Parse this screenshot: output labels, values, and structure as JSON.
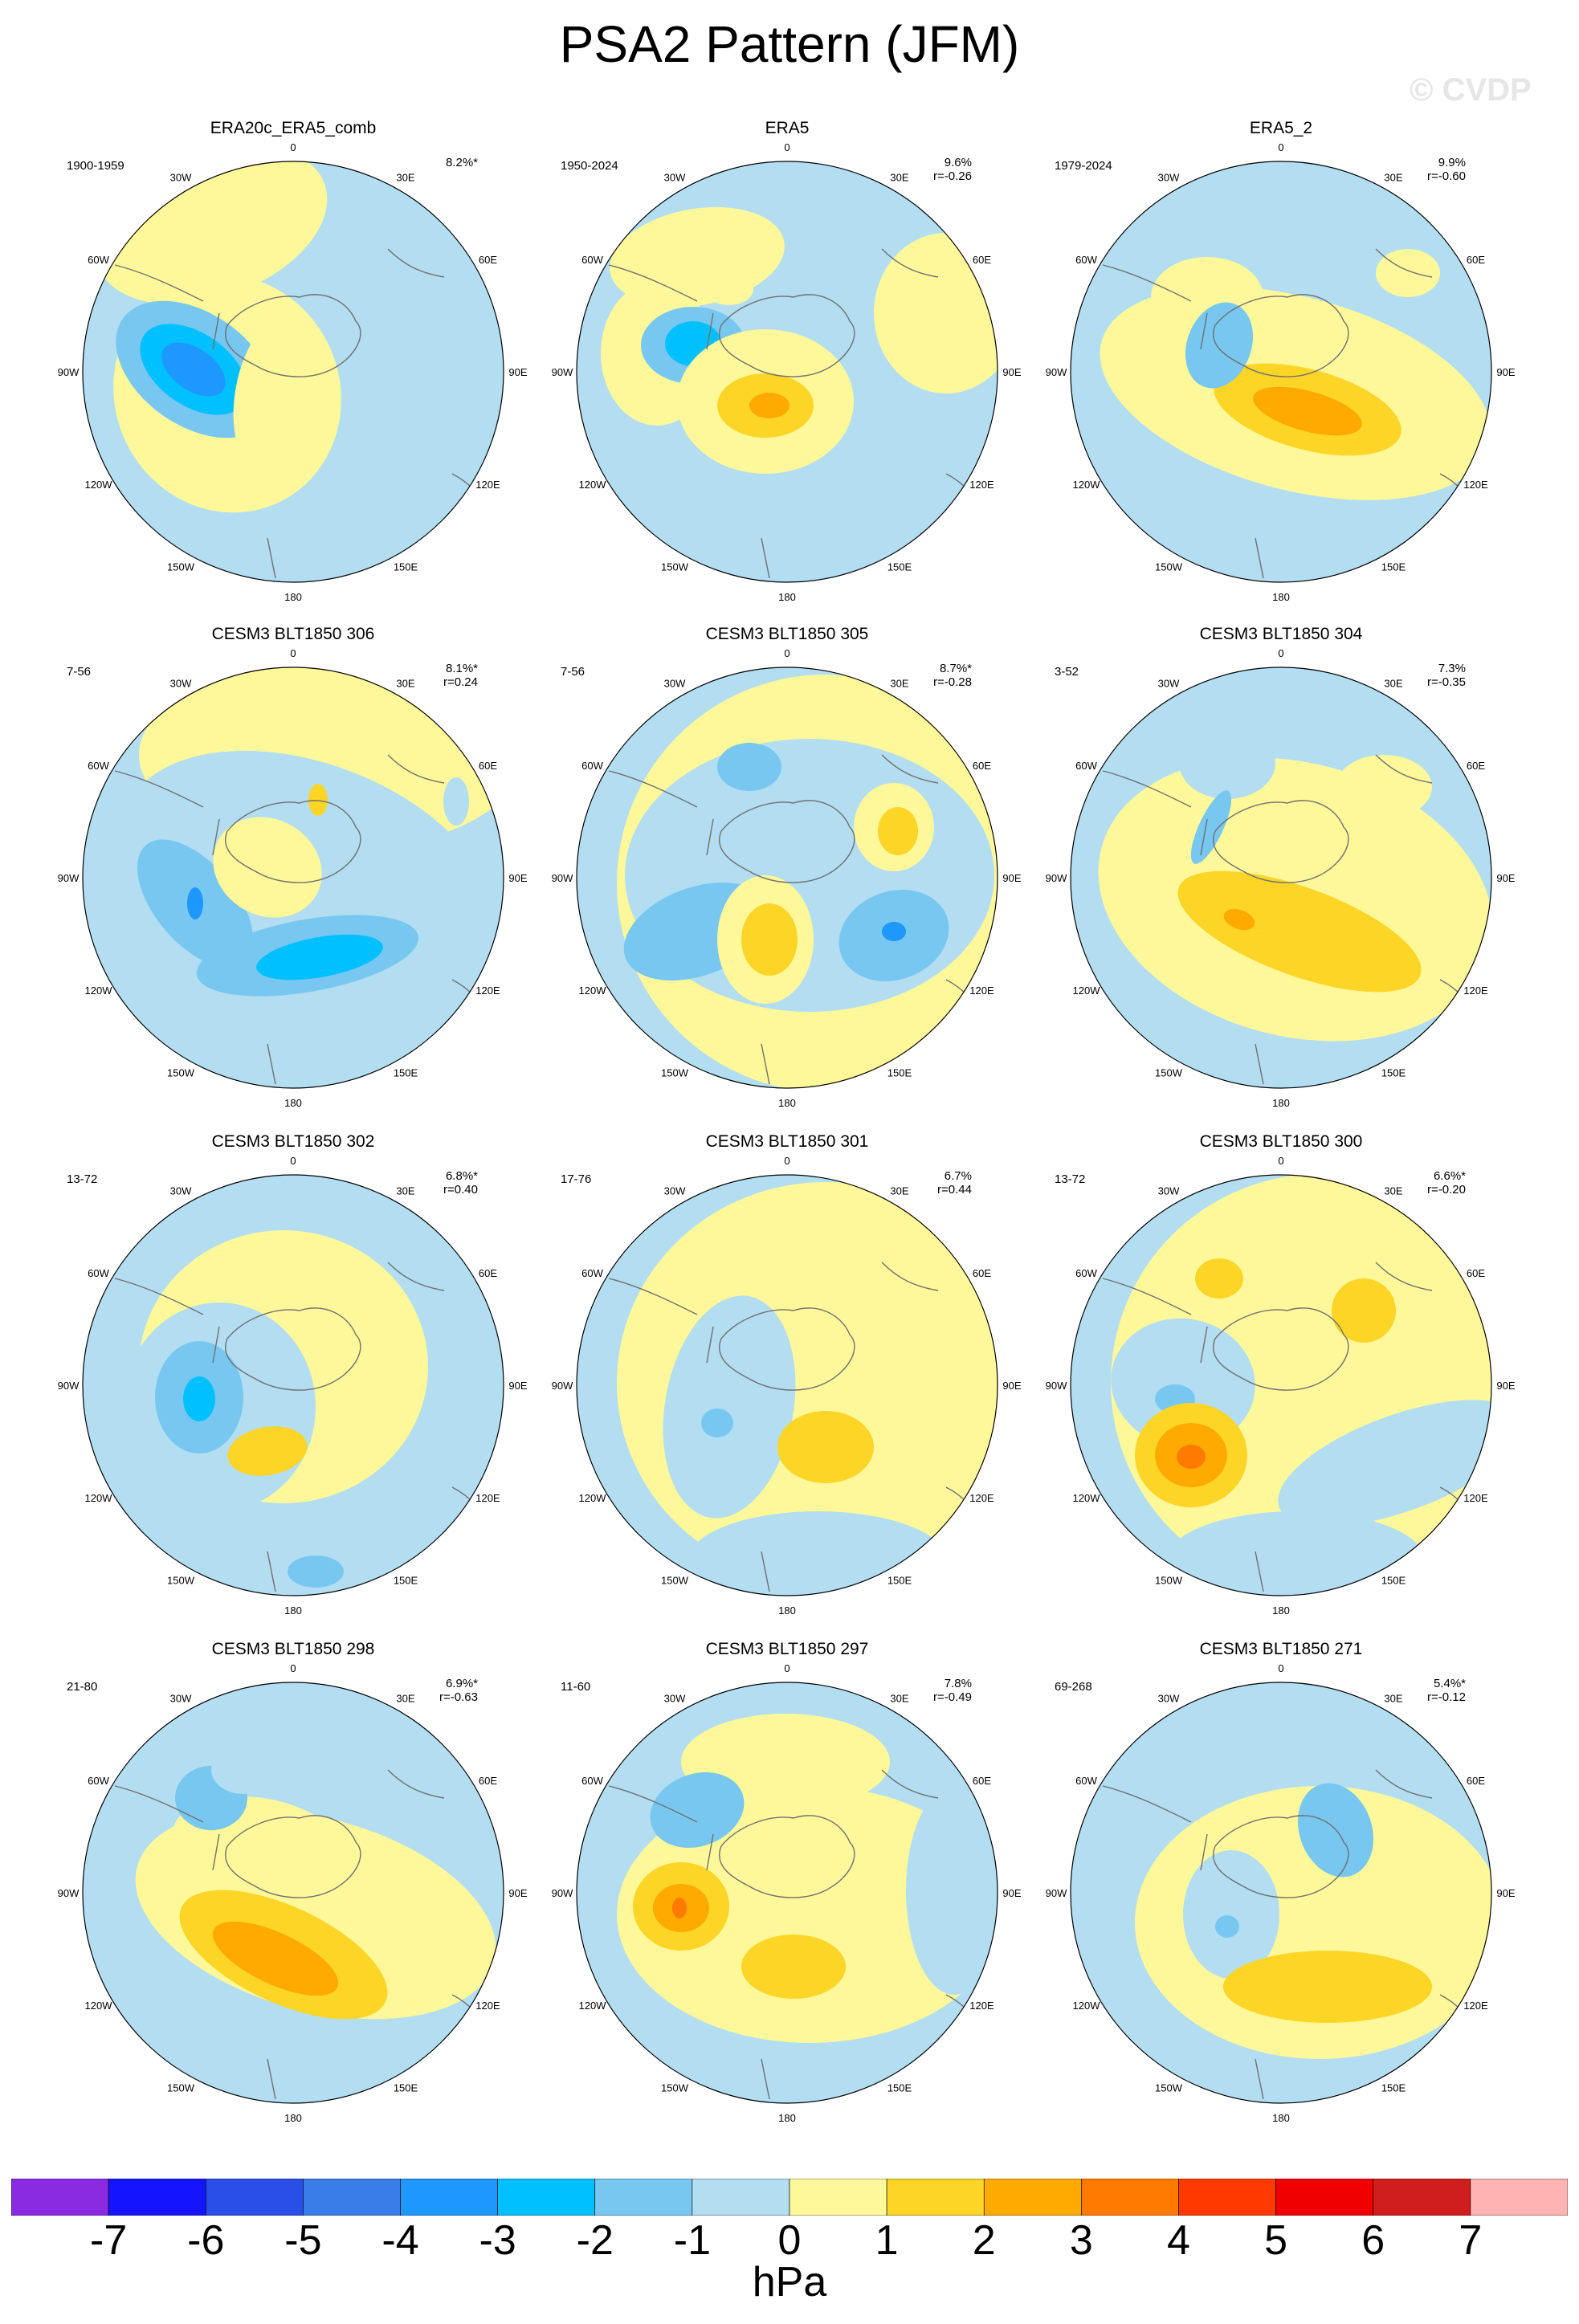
{
  "figure": {
    "title": "PSA2 Pattern (JFM)",
    "watermark": "© CVDP",
    "colors": {
      "neg1": "#b3ddf1",
      "neg2": "#78c7f0",
      "neg3": "#00c0ff",
      "neg4": "#1e97ff",
      "pos1": "#fff89a",
      "pos2": "#fdd527",
      "pos3": "#ffaa00",
      "pos4": "#ff7a00",
      "coast": "#707070"
    }
  },
  "longitude_labels": [
    "0",
    "30E",
    "60E",
    "90E",
    "120E",
    "150E",
    "180",
    "150W",
    "120W",
    "90W",
    "60W",
    "30W"
  ],
  "panels": [
    {
      "title": "ERA20c_ERA5_comb",
      "period": "1900-1959",
      "pct": "8.2%*",
      "r": ""
    },
    {
      "title": "ERA5",
      "period": "1950-2024",
      "pct": "9.6%",
      "r": "r=-0.26"
    },
    {
      "title": "ERA5_2",
      "period": "1979-2024",
      "pct": "9.9%",
      "r": "r=-0.60"
    },
    {
      "title": "CESM3 BLT1850 306",
      "period": "7-56",
      "pct": "8.1%*",
      "r": "r=0.24"
    },
    {
      "title": "CESM3 BLT1850 305",
      "period": "7-56",
      "pct": "8.7%*",
      "r": "r=-0.28"
    },
    {
      "title": "CESM3 BLT1850 304",
      "period": "3-52",
      "pct": "7.3%",
      "r": "r=-0.35"
    },
    {
      "title": "CESM3 BLT1850 302",
      "period": "13-72",
      "pct": "6.8%*",
      "r": "r=0.40"
    },
    {
      "title": "CESM3 BLT1850 301",
      "period": "17-76",
      "pct": "6.7%",
      "r": "r=0.44"
    },
    {
      "title": "CESM3 BLT1850 300",
      "period": "13-72",
      "pct": "6.6%*",
      "r": "r=-0.20"
    },
    {
      "title": "CESM3 BLT1850 298",
      "period": "21-80",
      "pct": "6.9%*",
      "r": "r=-0.63"
    },
    {
      "title": "CESM3 BLT1850 297",
      "period": "11-60",
      "pct": "7.8%",
      "r": "r=-0.49"
    },
    {
      "title": "CESM3 BLT1850 271",
      "period": "69-268",
      "pct": "5.4%*",
      "r": "r=-0.12"
    }
  ],
  "colorbar": {
    "labels": [
      "-7",
      "-6",
      "-5",
      "-4",
      "-3",
      "-2",
      "-1",
      "0",
      "1",
      "2",
      "3",
      "4",
      "5",
      "6",
      "7"
    ],
    "units": "hPa",
    "colors": [
      "#8a2be2",
      "#1414ff",
      "#2a4ee8",
      "#3a7de8",
      "#1e97ff",
      "#00c0ff",
      "#78c7f0",
      "#b3ddf1",
      "#fff89a",
      "#fdd527",
      "#ffaa00",
      "#ff7a00",
      "#ff3a00",
      "#f00000",
      "#d01d1d",
      "#ffb3b3"
    ]
  }
}
